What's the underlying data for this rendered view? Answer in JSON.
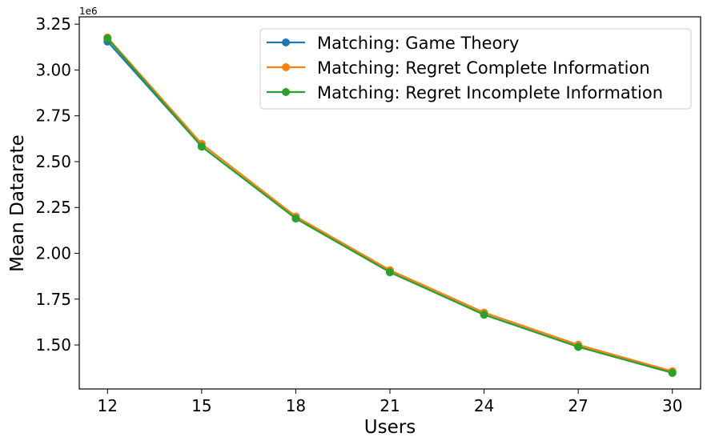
{
  "chart_data": {
    "type": "line",
    "xlabel": "Users",
    "ylabel": "Mean Datarate",
    "y_offset_label": "1e6",
    "x": [
      12,
      15,
      18,
      21,
      24,
      27,
      30
    ],
    "x_tick_labels": [
      "12",
      "15",
      "18",
      "21",
      "24",
      "27",
      "30"
    ],
    "y_ticks": [
      1.5,
      1.75,
      2.0,
      2.25,
      2.5,
      2.75,
      3.0,
      3.25
    ],
    "y_tick_labels": [
      "1.50",
      "1.75",
      "2.00",
      "2.25",
      "2.50",
      "2.75",
      "3.00",
      "3.25"
    ],
    "xlim": [
      11.1,
      30.9
    ],
    "ylim": [
      1.26,
      3.29
    ],
    "grid": false,
    "legend_position": "upper right",
    "series": [
      {
        "name": "Matching: Game Theory",
        "color": "#1f77b4",
        "marker": "circle",
        "values": [
          3.155,
          2.583,
          2.19,
          1.897,
          1.666,
          1.49,
          1.348
        ]
      },
      {
        "name": "Matching: Regret Complete Information",
        "color": "#ff7f0e",
        "marker": "circle",
        "values": [
          3.177,
          2.597,
          2.201,
          1.908,
          1.677,
          1.501,
          1.357
        ]
      },
      {
        "name": "Matching: Regret Incomplete Information",
        "color": "#2ca02c",
        "marker": "circle",
        "values": [
          3.172,
          2.582,
          2.19,
          1.897,
          1.665,
          1.49,
          1.348
        ]
      }
    ]
  }
}
